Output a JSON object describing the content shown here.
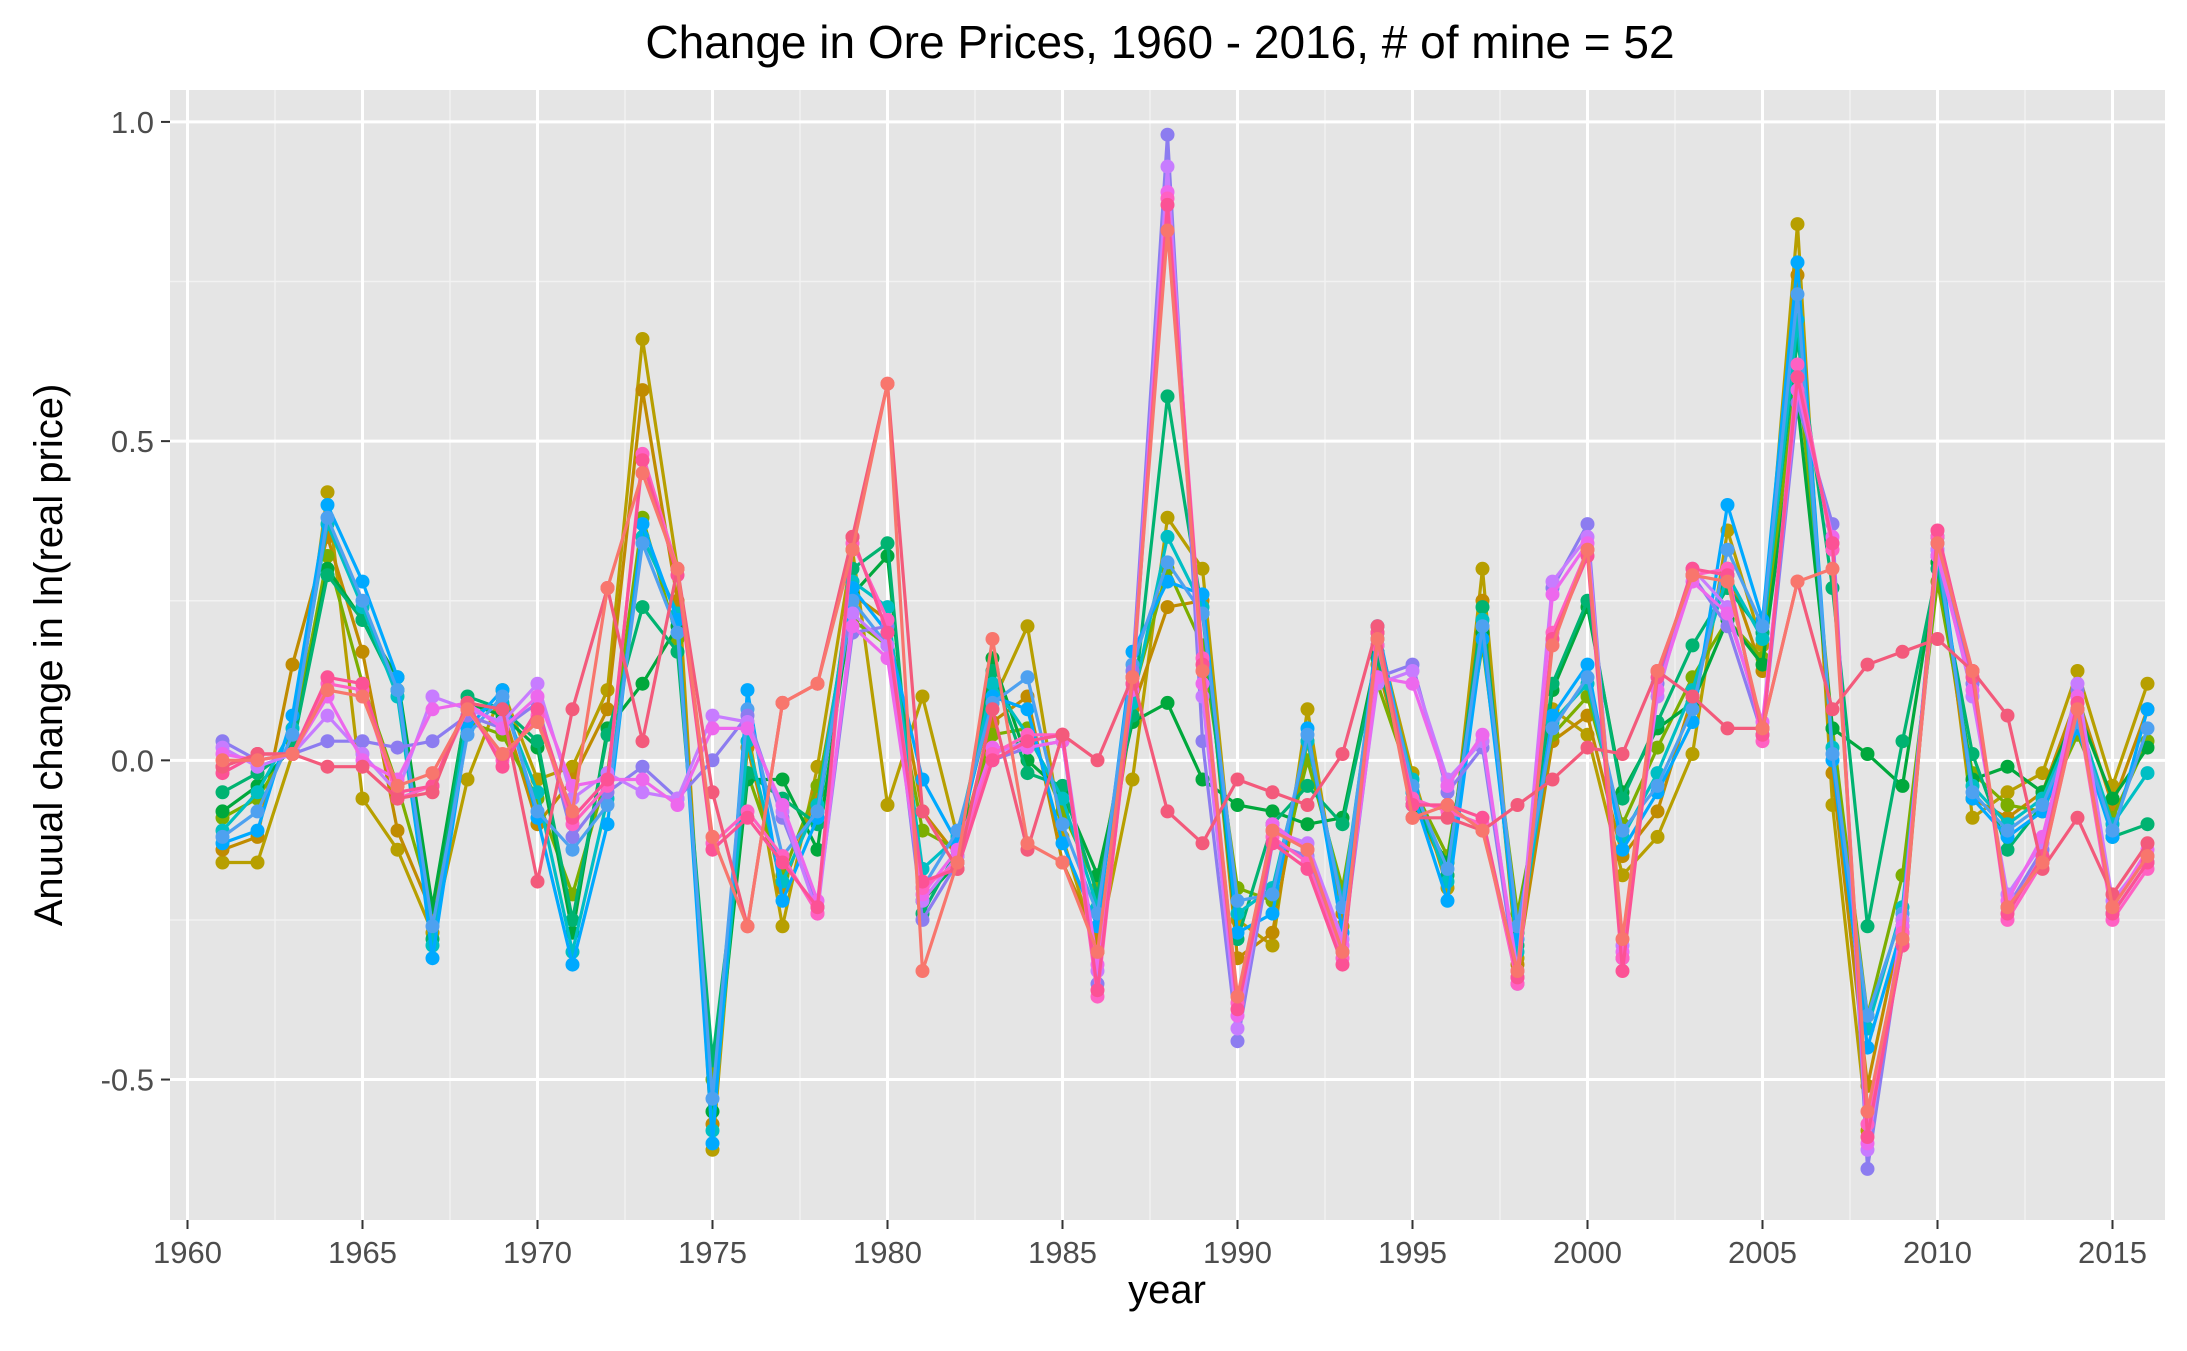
{
  "chart_data": {
    "type": "line",
    "title": "Change in Ore Prices, 1960 - 2016, # of mine = 52",
    "xlabel": "year",
    "ylabel": "Anuual change in ln(real price)",
    "xlim": [
      1959.5,
      2016.5
    ],
    "ylim": [
      -0.72,
      1.05
    ],
    "x_ticks": [
      1960,
      1965,
      1970,
      1975,
      1980,
      1985,
      1990,
      1995,
      2000,
      2005,
      2010,
      2015
    ],
    "y_ticks": [
      -0.5,
      0.0,
      0.5,
      1.0
    ],
    "y_tick_labels": [
      "-0.5",
      "0.0",
      "0.5",
      "1.0"
    ],
    "markers": true,
    "legend": "none",
    "grid": true,
    "background": "#e5e5e5",
    "x": [
      1961,
      1962,
      1963,
      1964,
      1965,
      1966,
      1967,
      1968,
      1969,
      1970,
      1971,
      1972,
      1973,
      1974,
      1975,
      1976,
      1977,
      1978,
      1979,
      1980,
      1981,
      1982,
      1983,
      1984,
      1985,
      1986,
      1987,
      1988,
      1989,
      1990,
      1991,
      1992,
      1993,
      1994,
      1995,
      1996,
      1997,
      1998,
      1999,
      2000,
      2001,
      2002,
      2003,
      2004,
      2005,
      2006,
      2007,
      2008,
      2009,
      2010,
      2011,
      2012,
      2013,
      2014,
      2015,
      2016
    ],
    "series": [
      {
        "color": "#b79f00",
        "values": [
          -0.16,
          -0.16,
          0.01,
          0.42,
          -0.06,
          -0.14,
          -0.27,
          -0.03,
          0.11,
          -0.03,
          -0.01,
          0.11,
          0.66,
          0.3,
          -0.61,
          0.05,
          -0.26,
          -0.01,
          0.33,
          -0.07,
          0.1,
          -0.12,
          0.09,
          0.21,
          -0.12,
          -0.3,
          -0.03,
          0.38,
          0.3,
          -0.25,
          -0.29,
          0.08,
          -0.26,
          0.2,
          -0.02,
          -0.2,
          0.3,
          -0.31,
          0.08,
          0.04,
          -0.18,
          -0.12,
          0.01,
          0.36,
          0.18,
          0.84,
          -0.07,
          -0.58,
          -0.29,
          0.35,
          -0.09,
          -0.05,
          -0.02,
          0.14,
          -0.04,
          0.12
        ]
      },
      {
        "color": "#c08b00",
        "values": [
          -0.14,
          -0.12,
          0.15,
          0.35,
          0.17,
          -0.11,
          -0.24,
          0.09,
          0.08,
          -0.1,
          -0.03,
          0.08,
          0.58,
          0.25,
          -0.57,
          0.02,
          -0.2,
          -0.05,
          0.26,
          0.22,
          -0.08,
          -0.15,
          0.06,
          0.1,
          -0.16,
          -0.28,
          0.08,
          0.24,
          0.25,
          -0.31,
          -0.27,
          0.03,
          -0.24,
          0.15,
          -0.06,
          -0.18,
          0.25,
          -0.32,
          0.03,
          0.07,
          -0.15,
          -0.08,
          0.1,
          0.3,
          0.14,
          0.76,
          -0.02,
          -0.51,
          -0.25,
          0.31,
          -0.06,
          -0.09,
          -0.05,
          0.1,
          -0.07,
          0.08
        ]
      },
      {
        "color": "#7cae00",
        "values": [
          -0.09,
          -0.06,
          0.03,
          0.32,
          0.12,
          -0.04,
          -0.23,
          0.06,
          0.04,
          -0.06,
          -0.21,
          -0.02,
          0.38,
          0.19,
          -0.5,
          -0.02,
          -0.18,
          -0.04,
          0.22,
          0.18,
          -0.11,
          -0.14,
          0.04,
          0.05,
          -0.08,
          -0.2,
          0.1,
          0.3,
          0.18,
          -0.2,
          -0.22,
          0.0,
          -0.2,
          0.12,
          -0.04,
          -0.15,
          0.18,
          -0.24,
          0.04,
          0.1,
          -0.1,
          0.02,
          0.13,
          0.22,
          0.16,
          0.62,
          0.05,
          -0.4,
          -0.18,
          0.28,
          -0.02,
          -0.07,
          -0.08,
          0.04,
          -0.09,
          0.03
        ]
      },
      {
        "color": "#00a83c",
        "values": [
          -0.08,
          -0.04,
          0.02,
          0.3,
          0.22,
          0.13,
          -0.23,
          0.09,
          0.07,
          0.02,
          -0.27,
          0.05,
          0.12,
          0.21,
          -0.55,
          -0.03,
          -0.03,
          -0.14,
          0.26,
          0.32,
          -0.22,
          -0.16,
          0.16,
          0.0,
          -0.05,
          -0.18,
          0.06,
          0.09,
          -0.03,
          -0.07,
          -0.08,
          -0.1,
          -0.09,
          0.17,
          -0.07,
          -0.16,
          0.2,
          -0.27,
          0.11,
          0.24,
          -0.05,
          0.05,
          0.09,
          0.22,
          0.15,
          0.56,
          0.05,
          0.01,
          -0.04,
          0.31,
          -0.03,
          -0.01,
          -0.05,
          0.08,
          -0.06,
          0.02
        ]
      },
      {
        "color": "#00b371",
        "values": [
          -0.05,
          -0.02,
          0.02,
          0.29,
          0.22,
          0.11,
          -0.28,
          0.1,
          0.08,
          0.03,
          -0.25,
          0.04,
          0.24,
          0.17,
          -0.47,
          -0.02,
          -0.06,
          -0.1,
          0.3,
          0.34,
          -0.24,
          -0.14,
          0.14,
          -0.02,
          -0.04,
          -0.21,
          0.07,
          0.57,
          0.23,
          -0.28,
          -0.1,
          -0.04,
          -0.1,
          0.16,
          -0.05,
          -0.18,
          0.24,
          -0.29,
          0.12,
          0.25,
          -0.06,
          0.06,
          0.18,
          0.27,
          0.2,
          0.66,
          0.27,
          -0.26,
          0.03,
          0.3,
          0.01,
          -0.14,
          -0.07,
          0.06,
          -0.12,
          -0.1
        ]
      },
      {
        "color": "#00bfc4",
        "values": [
          -0.11,
          -0.05,
          0.05,
          0.37,
          0.24,
          0.1,
          -0.29,
          0.07,
          0.09,
          -0.05,
          -0.3,
          -0.06,
          0.35,
          0.23,
          -0.58,
          0.03,
          -0.19,
          -0.07,
          0.28,
          0.24,
          -0.17,
          -0.12,
          0.12,
          0.04,
          -0.06,
          -0.23,
          0.09,
          0.35,
          0.24,
          -0.24,
          -0.2,
          0.03,
          -0.22,
          0.18,
          -0.03,
          -0.19,
          0.22,
          -0.3,
          0.06,
          0.12,
          -0.12,
          -0.02,
          0.11,
          0.29,
          0.19,
          0.69,
          0.02,
          -0.42,
          -0.23,
          0.32,
          -0.04,
          -0.1,
          -0.06,
          0.07,
          -0.1,
          -0.02
        ]
      },
      {
        "color": "#00a9ff",
        "values": [
          -0.13,
          -0.11,
          0.07,
          0.4,
          0.28,
          0.13,
          -0.31,
          0.05,
          0.11,
          -0.09,
          -0.32,
          -0.1,
          0.37,
          0.22,
          -0.6,
          0.11,
          -0.22,
          -0.09,
          0.27,
          0.2,
          -0.03,
          -0.13,
          0.1,
          0.08,
          -0.13,
          -0.26,
          0.17,
          0.28,
          0.26,
          -0.27,
          -0.24,
          0.05,
          -0.27,
          0.21,
          -0.05,
          -0.22,
          0.19,
          -0.28,
          0.07,
          0.15,
          -0.14,
          -0.05,
          0.06,
          0.4,
          0.22,
          0.78,
          0.0,
          -0.45,
          -0.26,
          0.35,
          -0.06,
          -0.12,
          -0.08,
          0.05,
          -0.12,
          0.08
        ]
      },
      {
        "color": "#4ea1f0",
        "values": [
          -0.12,
          -0.08,
          0.04,
          0.38,
          0.25,
          0.11,
          -0.26,
          0.04,
          0.1,
          -0.08,
          -0.14,
          -0.07,
          0.34,
          0.2,
          -0.53,
          0.08,
          -0.15,
          -0.08,
          0.25,
          0.18,
          -0.2,
          -0.11,
          0.09,
          0.13,
          -0.1,
          -0.24,
          0.15,
          0.31,
          0.23,
          -0.22,
          -0.21,
          0.04,
          -0.23,
          0.19,
          -0.04,
          -0.17,
          0.21,
          -0.26,
          0.05,
          0.13,
          -0.11,
          -0.04,
          0.08,
          0.33,
          0.21,
          0.73,
          0.01,
          -0.4,
          -0.24,
          0.33,
          -0.05,
          -0.11,
          -0.07,
          0.06,
          -0.11,
          0.05
        ]
      },
      {
        "color": "#8c7cf0",
        "values": [
          0.03,
          0.0,
          0.01,
          0.03,
          0.03,
          0.02,
          0.03,
          0.07,
          0.05,
          0.09,
          -0.12,
          -0.05,
          -0.01,
          -0.06,
          0.0,
          0.07,
          -0.09,
          -0.23,
          0.2,
          0.21,
          -0.25,
          -0.16,
          0.0,
          0.02,
          0.03,
          -0.35,
          0.14,
          0.98,
          0.03,
          -0.44,
          -0.13,
          -0.15,
          -0.3,
          0.13,
          0.15,
          -0.05,
          0.02,
          -0.35,
          0.27,
          0.37,
          -0.31,
          0.12,
          0.29,
          0.21,
          0.04,
          0.56,
          0.37,
          -0.64,
          -0.27,
          0.34,
          0.12,
          -0.23,
          -0.14,
          0.11,
          -0.24,
          -0.16
        ]
      },
      {
        "color": "#c77cff",
        "values": [
          0.02,
          -0.01,
          0.01,
          0.07,
          0.01,
          -0.05,
          0.1,
          0.08,
          0.06,
          0.12,
          -0.06,
          -0.02,
          -0.05,
          -0.06,
          0.07,
          0.06,
          -0.08,
          -0.24,
          0.23,
          0.18,
          -0.22,
          -0.15,
          0.01,
          0.03,
          0.04,
          -0.33,
          0.12,
          0.93,
          0.1,
          -0.42,
          -0.11,
          -0.13,
          -0.28,
          0.12,
          0.14,
          -0.03,
          0.03,
          -0.33,
          0.28,
          0.35,
          -0.29,
          0.1,
          0.3,
          0.24,
          0.05,
          0.6,
          0.34,
          -0.61,
          -0.25,
          0.33,
          0.1,
          -0.21,
          -0.13,
          0.12,
          -0.22,
          -0.15
        ]
      },
      {
        "color": "#ed68ed",
        "values": [
          0.01,
          0.0,
          0.01,
          0.1,
          0.0,
          -0.03,
          0.08,
          0.09,
          0.05,
          0.1,
          -0.04,
          -0.03,
          -0.03,
          -0.07,
          0.05,
          0.05,
          -0.07,
          -0.22,
          0.21,
          0.16,
          -0.21,
          -0.14,
          0.02,
          0.02,
          0.03,
          -0.32,
          0.11,
          0.89,
          0.12,
          -0.4,
          -0.1,
          -0.14,
          -0.29,
          0.13,
          0.12,
          -0.04,
          0.04,
          -0.34,
          0.26,
          0.34,
          -0.3,
          0.11,
          0.28,
          0.23,
          0.06,
          0.58,
          0.35,
          -0.6,
          -0.26,
          0.32,
          0.11,
          -0.22,
          -0.12,
          0.1,
          -0.23,
          -0.14
        ]
      },
      {
        "color": "#ff61c3",
        "values": [
          -0.01,
          0.01,
          0.01,
          0.12,
          0.11,
          -0.06,
          -0.04,
          0.08,
          0.0,
          0.07,
          -0.1,
          -0.04,
          0.48,
          0.3,
          -0.13,
          -0.08,
          -0.15,
          -0.24,
          0.34,
          0.22,
          -0.2,
          -0.16,
          0.01,
          0.04,
          0.04,
          -0.37,
          0.13,
          0.88,
          0.16,
          -0.38,
          -0.12,
          -0.16,
          -0.31,
          0.18,
          -0.06,
          -0.08,
          -0.1,
          -0.35,
          0.2,
          0.33,
          -0.31,
          0.14,
          0.29,
          0.3,
          0.03,
          0.62,
          0.33,
          -0.57,
          -0.27,
          0.35,
          0.14,
          -0.25,
          -0.16,
          0.08,
          -0.25,
          -0.17
        ]
      },
      {
        "color": "#fc5295",
        "values": [
          -0.02,
          0.01,
          0.01,
          0.13,
          0.12,
          -0.05,
          -0.04,
          0.09,
          -0.01,
          0.08,
          -0.09,
          -0.03,
          0.47,
          0.29,
          -0.14,
          -0.09,
          -0.16,
          -0.23,
          0.35,
          0.2,
          -0.19,
          -0.17,
          0.0,
          0.03,
          0.04,
          -0.36,
          0.12,
          0.87,
          0.15,
          -0.39,
          -0.13,
          -0.17,
          -0.32,
          0.2,
          -0.07,
          -0.07,
          -0.09,
          -0.34,
          0.19,
          0.32,
          -0.33,
          0.13,
          0.3,
          0.29,
          0.04,
          0.6,
          0.34,
          -0.59,
          -0.29,
          0.36,
          0.13,
          -0.24,
          -0.15,
          0.09,
          -0.24,
          -0.16
        ]
      },
      {
        "color": "#f35a7b",
        "values": [
          -0.01,
          0.01,
          0.01,
          -0.01,
          -0.01,
          -0.06,
          -0.05,
          0.09,
          0.08,
          -0.19,
          0.08,
          0.27,
          0.03,
          0.3,
          -0.05,
          -0.26,
          0.09,
          0.12,
          0.35,
          0.59,
          -0.08,
          -0.17,
          0.08,
          -0.14,
          0.04,
          0.0,
          0.13,
          -0.08,
          -0.13,
          -0.03,
          -0.05,
          -0.07,
          0.01,
          0.21,
          -0.09,
          -0.09,
          -0.11,
          -0.07,
          -0.03,
          0.02,
          0.01,
          0.14,
          0.1,
          0.05,
          0.05,
          0.28,
          0.08,
          0.15,
          0.17,
          0.19,
          0.14,
          0.07,
          -0.17,
          -0.09,
          -0.21,
          -0.13
        ]
      },
      {
        "color": "#f8766d",
        "values": [
          0.0,
          0.0,
          0.01,
          0.11,
          0.1,
          -0.04,
          -0.02,
          0.08,
          0.01,
          0.06,
          -0.08,
          0.27,
          0.45,
          0.3,
          -0.12,
          -0.26,
          0.09,
          0.12,
          0.33,
          0.59,
          -0.33,
          -0.16,
          0.19,
          -0.13,
          -0.16,
          -0.3,
          0.13,
          0.83,
          0.14,
          -0.37,
          -0.11,
          -0.14,
          -0.3,
          0.19,
          -0.09,
          -0.07,
          -0.11,
          -0.33,
          0.18,
          0.33,
          -0.28,
          0.14,
          0.29,
          0.28,
          0.05,
          0.28,
          0.3,
          -0.55,
          -0.28,
          0.34,
          0.14,
          -0.23,
          -0.16,
          0.08,
          -0.23,
          -0.15
        ]
      }
    ]
  }
}
